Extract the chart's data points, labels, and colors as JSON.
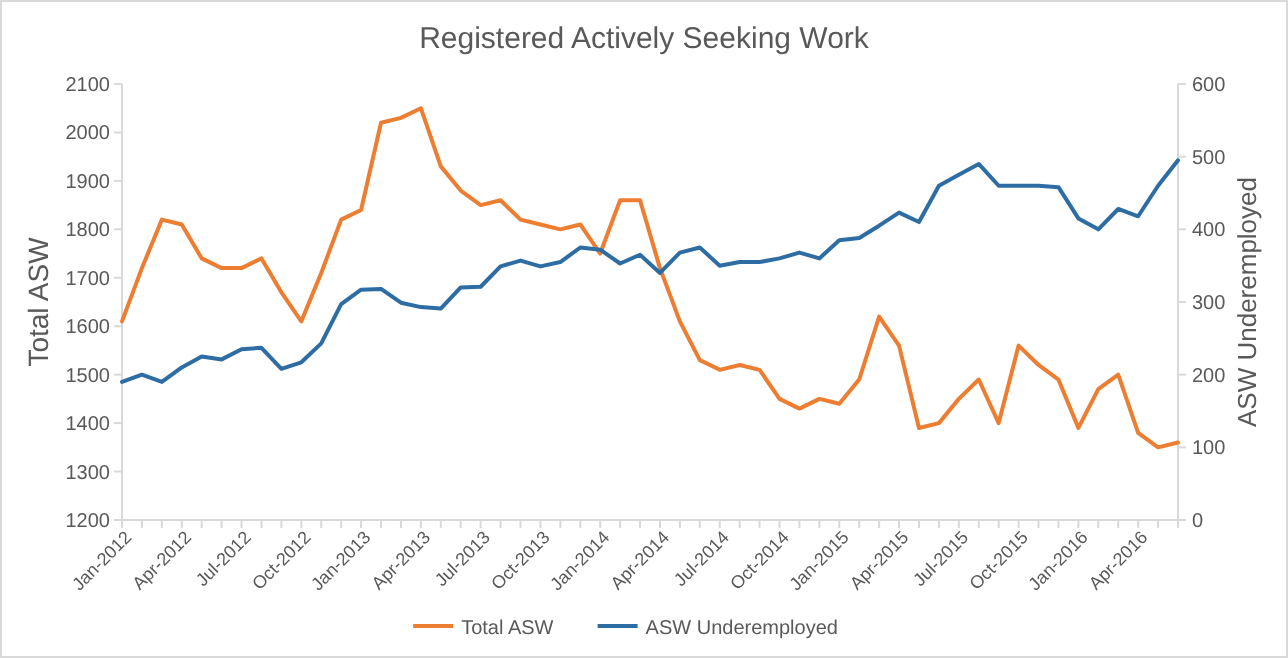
{
  "chart_data": {
    "type": "line",
    "title": "Registered Actively Seeking Work",
    "ylabel": "Total ASW",
    "y2label": "ASW Underemployed",
    "categories": [
      "Jan-2012",
      null,
      null,
      "Apr-2012",
      null,
      null,
      "Jul-2012",
      null,
      null,
      "Oct-2012",
      null,
      null,
      "Jan-2013",
      null,
      null,
      "Apr-2013",
      null,
      null,
      "Jul-2013",
      null,
      null,
      "Oct-2013",
      null,
      null,
      "Jan-2014",
      null,
      null,
      "Apr-2014",
      null,
      null,
      "Jul-2014",
      null,
      null,
      "Oct-2014",
      null,
      null,
      "Jan-2015",
      null,
      null,
      "Apr-2015",
      null,
      null,
      "Jul-2015",
      null,
      null,
      "Oct-2015",
      null,
      null,
      "Jan-2016",
      null,
      null,
      "Apr-2016",
      null,
      null
    ],
    "series": [
      {
        "name": "Total ASW",
        "color": "#ed7d31",
        "values": [
          1610,
          1720,
          1820,
          1810,
          1740,
          1720,
          1720,
          1740,
          1670,
          1610,
          1710,
          1820,
          1840,
          2020,
          2030,
          2050,
          1930,
          1880,
          1850,
          1860,
          1820,
          1810,
          1800,
          1810,
          1750,
          1860,
          1860,
          1720,
          1610,
          1530,
          1510,
          1520,
          1510,
          1450,
          1430,
          1450,
          1440,
          1490,
          1620,
          1560,
          1390,
          1400,
          1450,
          1490,
          1400,
          1560,
          1520,
          1490,
          1390,
          1470,
          1500,
          1380,
          1350,
          1360
        ]
      },
      {
        "name": "ASW Underemployed",
        "color": "#2e6da4",
        "axis": "y2",
        "values": [
          190,
          200,
          190,
          210,
          225,
          221,
          235,
          237,
          208,
          217,
          243,
          297,
          317,
          318,
          299,
          293,
          291,
          320,
          321,
          349,
          357,
          349,
          355,
          375,
          372,
          353,
          365,
          340,
          368,
          375,
          350,
          355,
          355,
          360,
          368,
          360,
          385,
          388,
          405,
          423,
          410,
          460,
          475,
          490,
          460,
          460,
          460,
          458,
          415,
          400,
          428,
          418,
          460,
          495
        ]
      }
    ],
    "ylim": [
      1200,
      2100
    ],
    "yticks": [
      1200,
      1300,
      1400,
      1500,
      1600,
      1700,
      1800,
      1900,
      2000,
      2100
    ],
    "y2lim": [
      0,
      600
    ],
    "y2ticks": [
      0,
      100,
      200,
      300,
      400,
      500,
      600
    ],
    "grid": false,
    "legend": "bottom"
  }
}
